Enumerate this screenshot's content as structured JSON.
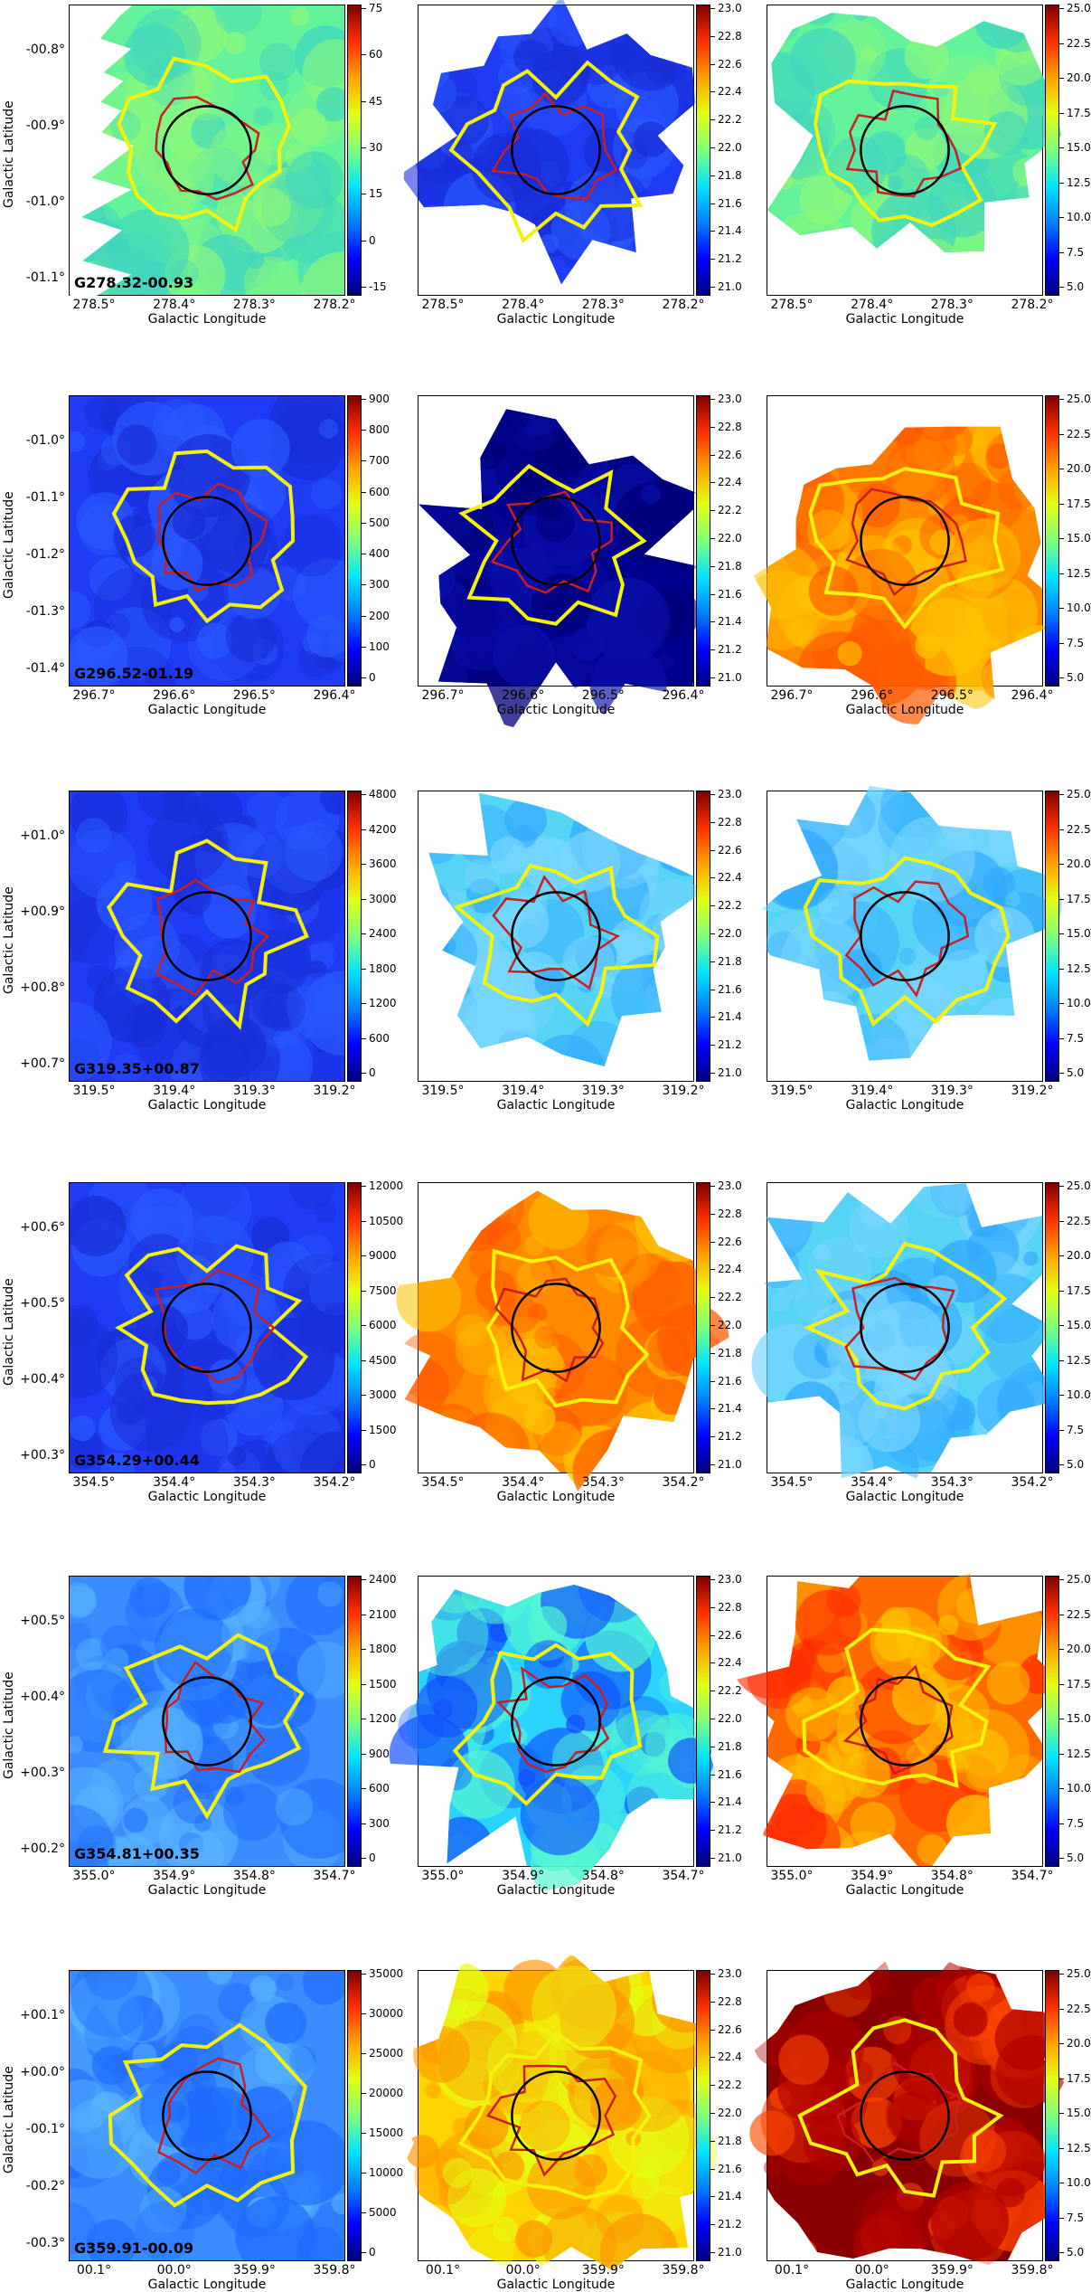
{
  "axis_labels": {
    "xlabel": "Galactic Longitude",
    "ylabel": "Galactic Latitude"
  },
  "colormap": [
    "#00007f",
    "#0000ff",
    "#0080ff",
    "#00e5ff",
    "#7dff7a",
    "#e4ff13",
    "#ffa200",
    "#ff2e00",
    "#7f0000"
  ],
  "chart_data": [
    {
      "type": "heatmap",
      "name": "G278.32-00.93",
      "x_ticks": [
        "278.5°",
        "278.4°",
        "278.3°",
        "278.2°"
      ],
      "y_ticks": [
        "-00.8°",
        "-00.9°",
        "-01.0°",
        "-01.1°"
      ],
      "panels": [
        {
          "cbar_ticks": [
            "75",
            "60",
            "45",
            "30",
            "15",
            "0",
            "-15"
          ],
          "coverage": "full-edge",
          "base": "green"
        },
        {
          "cbar_ticks": [
            "23.0",
            "22.8",
            "22.6",
            "22.4",
            "22.2",
            "22.0",
            "21.8",
            "21.6",
            "21.4",
            "21.2",
            "21.0"
          ],
          "coverage": "blob",
          "base": "blue"
        },
        {
          "cbar_ticks": [
            "25.0",
            "22.5",
            "20.0",
            "17.5",
            "15.0",
            "12.5",
            "10.0",
            "7.5",
            "5.0"
          ],
          "coverage": "blob",
          "base": "green"
        }
      ]
    },
    {
      "type": "heatmap",
      "name": "G296.52-01.19",
      "x_ticks": [
        "296.7°",
        "296.6°",
        "296.5°",
        "296.4°"
      ],
      "y_ticks": [
        "-01.0°",
        "-01.1°",
        "-01.2°",
        "-01.3°",
        "-01.4°"
      ],
      "panels": [
        {
          "cbar_ticks": [
            "900",
            "800",
            "700",
            "600",
            "500",
            "400",
            "300",
            "200",
            "100",
            "0"
          ],
          "coverage": "full",
          "base": "blue"
        },
        {
          "cbar_ticks": [
            "23.0",
            "22.8",
            "22.6",
            "22.4",
            "22.2",
            "22.0",
            "21.8",
            "21.6",
            "21.4",
            "21.2",
            "21.0"
          ],
          "coverage": "sparse",
          "base": "navy"
        },
        {
          "cbar_ticks": [
            "25.0",
            "22.5",
            "20.0",
            "17.5",
            "15.0",
            "12.5",
            "10.0",
            "7.5",
            "5.0"
          ],
          "coverage": "sparse",
          "base": "orange"
        }
      ]
    },
    {
      "type": "heatmap",
      "name": "G319.35+00.87",
      "x_ticks": [
        "319.5°",
        "319.4°",
        "319.3°",
        "319.2°"
      ],
      "y_ticks": [
        "+01.0°",
        "+00.9°",
        "+00.8°",
        "+00.7°"
      ],
      "panels": [
        {
          "cbar_ticks": [
            "4800",
            "4200",
            "3600",
            "3000",
            "2400",
            "1800",
            "1200",
            "600",
            "0"
          ],
          "coverage": "full",
          "base": "blue"
        },
        {
          "cbar_ticks": [
            "23.0",
            "22.8",
            "22.6",
            "22.4",
            "22.2",
            "22.0",
            "21.8",
            "21.6",
            "21.4",
            "21.2",
            "21.0"
          ],
          "coverage": "blob",
          "base": "cyan"
        },
        {
          "cbar_ticks": [
            "25.0",
            "22.5",
            "20.0",
            "17.5",
            "15.0",
            "12.5",
            "10.0",
            "7.5",
            "5.0"
          ],
          "coverage": "blob",
          "base": "cyan"
        }
      ]
    },
    {
      "type": "heatmap",
      "name": "G354.29+00.44",
      "x_ticks": [
        "354.5°",
        "354.4°",
        "354.3°",
        "354.2°"
      ],
      "y_ticks": [
        "+00.6°",
        "+00.5°",
        "+00.4°",
        "+00.3°"
      ],
      "panels": [
        {
          "cbar_ticks": [
            "12000",
            "10500",
            "9000",
            "7500",
            "6000",
            "4500",
            "3000",
            "1500",
            "0"
          ],
          "coverage": "full",
          "base": "blue"
        },
        {
          "cbar_ticks": [
            "23.0",
            "22.8",
            "22.6",
            "22.4",
            "22.2",
            "22.0",
            "21.8",
            "21.6",
            "21.4",
            "21.2",
            "21.0"
          ],
          "coverage": "wide",
          "base": "orange"
        },
        {
          "cbar_ticks": [
            "25.0",
            "22.5",
            "20.0",
            "17.5",
            "15.0",
            "12.5",
            "10.0",
            "7.5",
            "5.0"
          ],
          "coverage": "wide",
          "base": "cyan"
        }
      ]
    },
    {
      "type": "heatmap",
      "name": "G354.81+00.35",
      "x_ticks": [
        "355.0°",
        "354.9°",
        "354.8°",
        "354.7°"
      ],
      "y_ticks": [
        "+00.5°",
        "+00.4°",
        "+00.3°",
        "+00.2°"
      ],
      "panels": [
        {
          "cbar_ticks": [
            "2400",
            "2100",
            "1800",
            "1500",
            "1200",
            "900",
            "600",
            "300",
            "0"
          ],
          "coverage": "full",
          "base": "sky"
        },
        {
          "cbar_ticks": [
            "23.0",
            "22.8",
            "22.6",
            "22.4",
            "22.2",
            "22.0",
            "21.8",
            "21.6",
            "21.4",
            "21.2",
            "21.0"
          ],
          "coverage": "wide",
          "base": "cyanblue"
        },
        {
          "cbar_ticks": [
            "25.0",
            "22.5",
            "20.0",
            "17.5",
            "15.0",
            "12.5",
            "10.0",
            "7.5",
            "5.0"
          ],
          "coverage": "wide",
          "base": "redorange"
        }
      ]
    },
    {
      "type": "heatmap",
      "name": "G359.91-00.09",
      "x_ticks": [
        "00.1°",
        "00.0°",
        "359.9°",
        "359.8°"
      ],
      "y_ticks": [
        "+00.1°",
        "+00.0°",
        "-00.1°",
        "-00.2°",
        "-00.3°"
      ],
      "panels": [
        {
          "cbar_ticks": [
            "35000",
            "30000",
            "25000",
            "20000",
            "15000",
            "10000",
            "5000",
            "0"
          ],
          "coverage": "full",
          "base": "sky"
        },
        {
          "cbar_ticks": [
            "23.0",
            "22.8",
            "22.6",
            "22.4",
            "22.2",
            "22.0",
            "21.8",
            "21.6",
            "21.4",
            "21.2",
            "21.0"
          ],
          "coverage": "band",
          "base": "yellow"
        },
        {
          "cbar_ticks": [
            "25.0",
            "22.5",
            "20.0",
            "17.5",
            "15.0",
            "12.5",
            "10.0",
            "7.5",
            "5.0"
          ],
          "coverage": "band",
          "base": "darkred"
        }
      ]
    }
  ]
}
